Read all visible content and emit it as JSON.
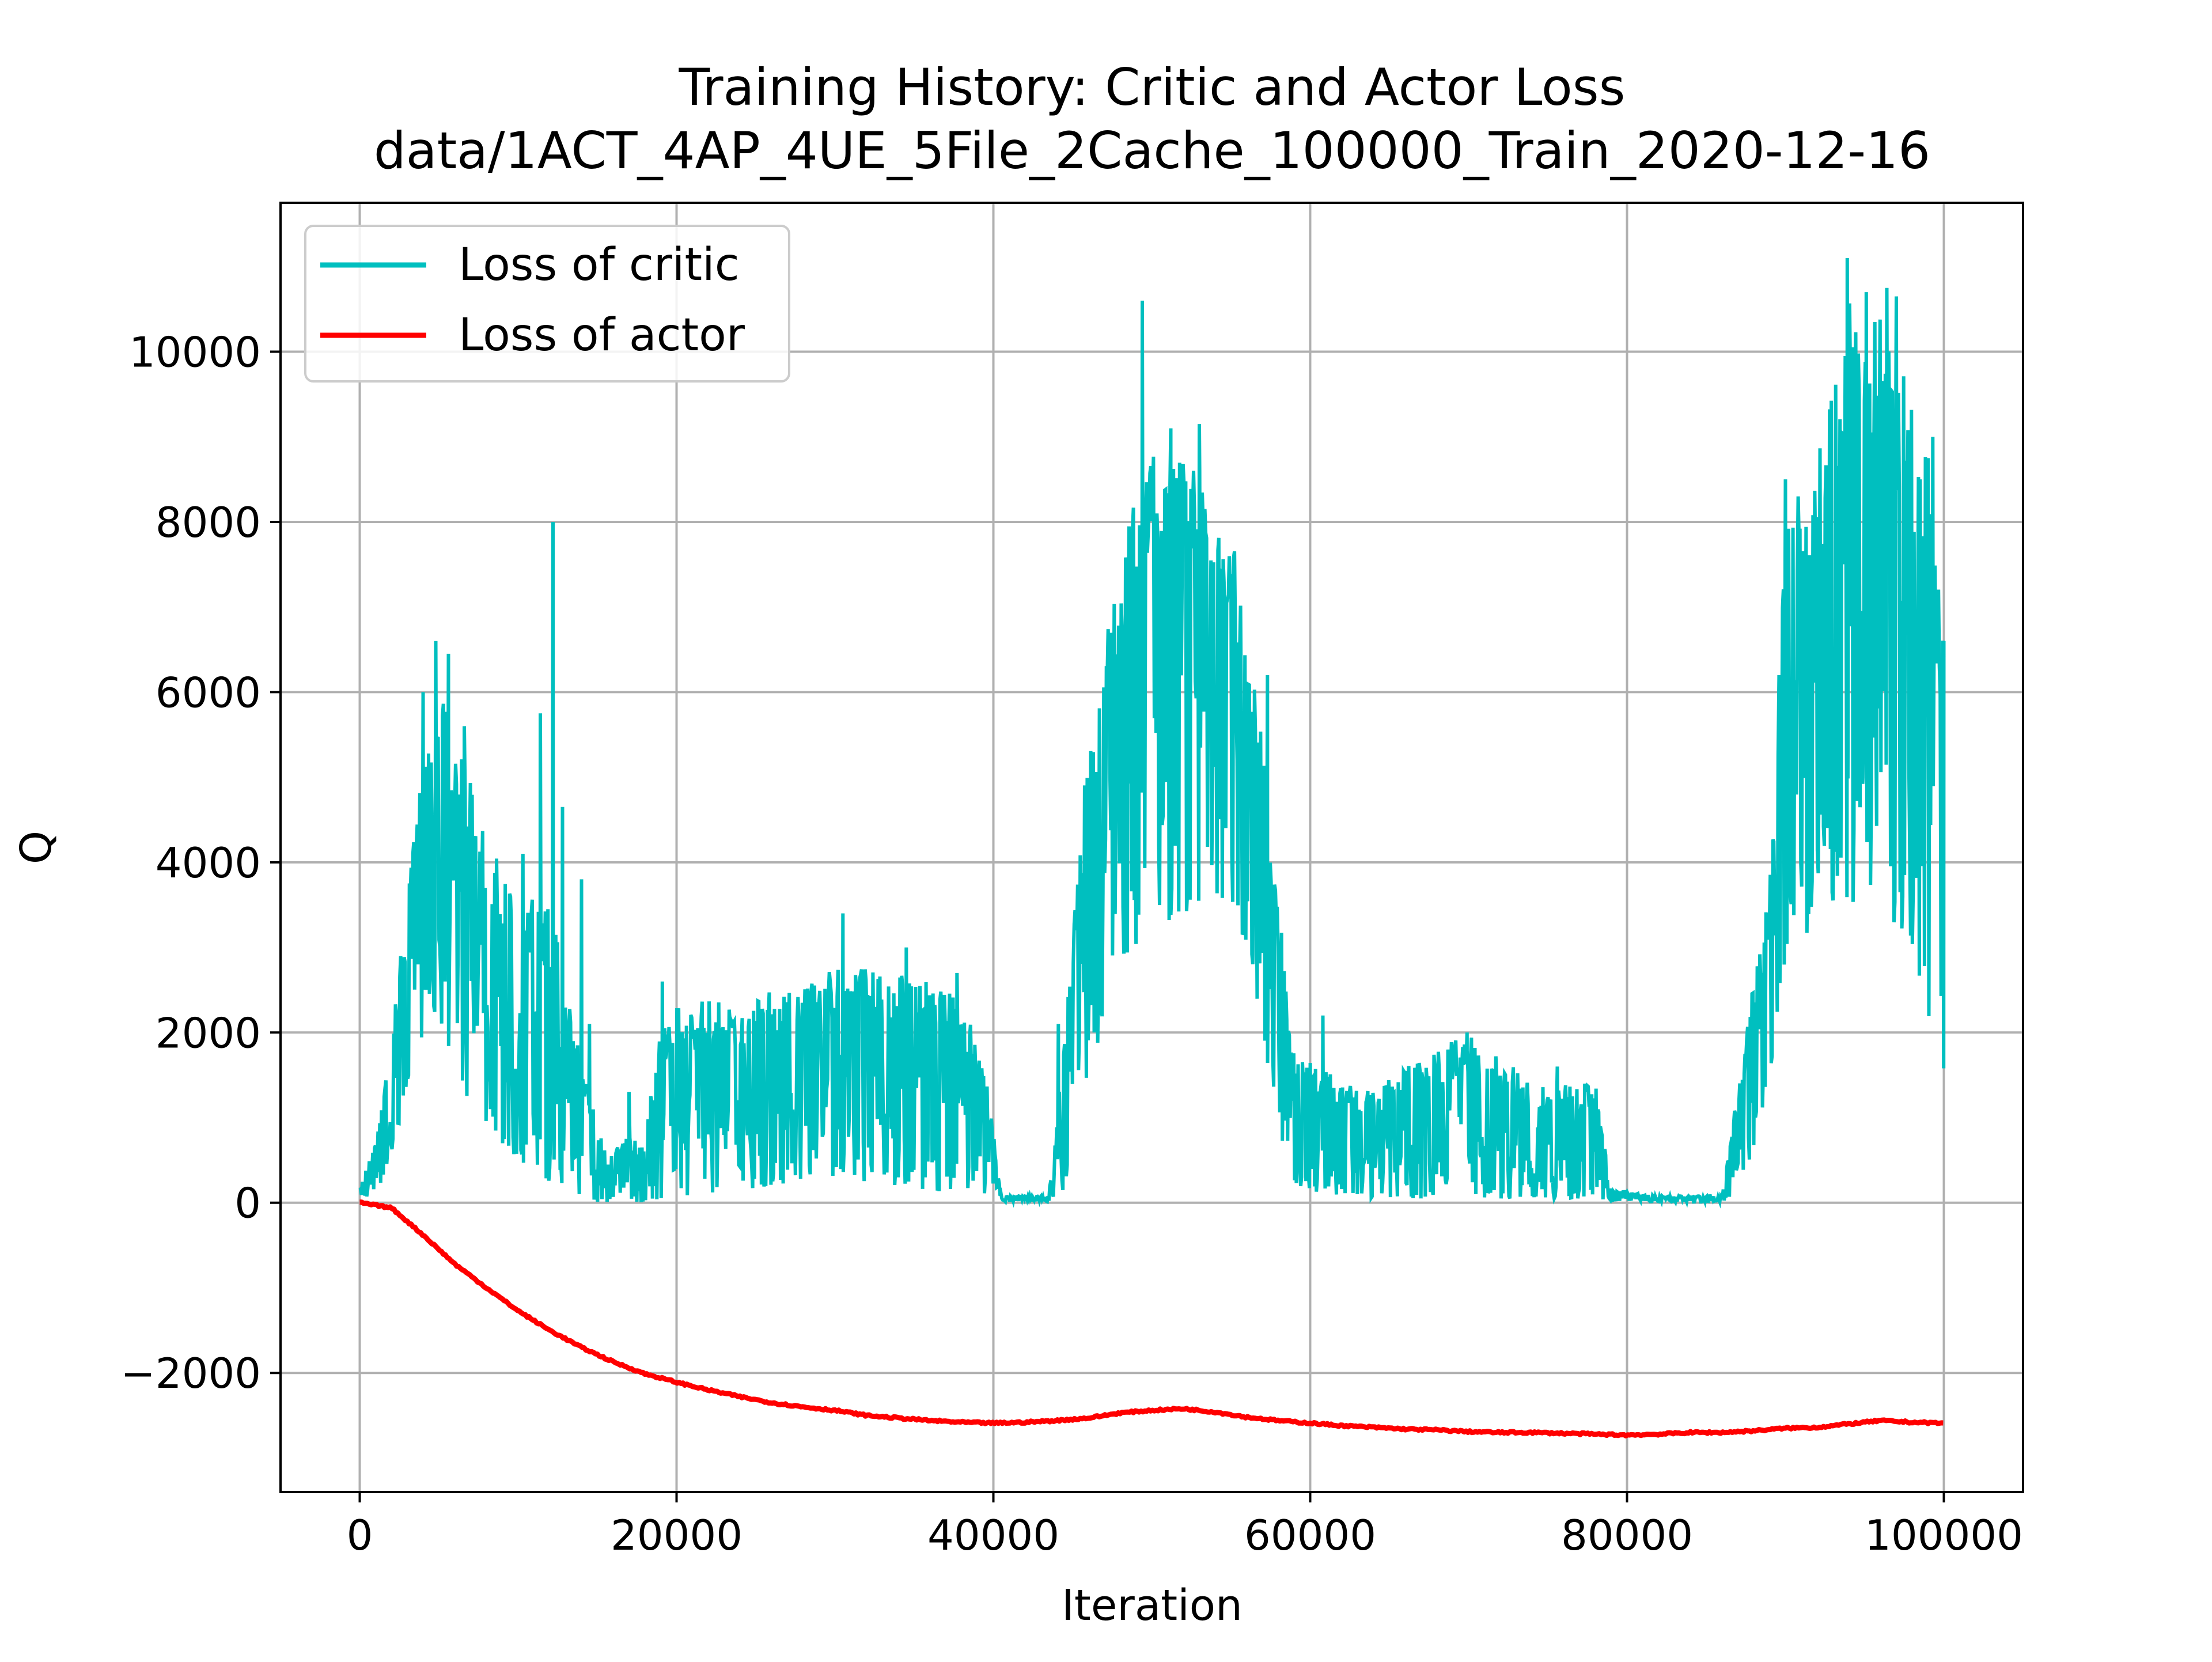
{
  "chart_data": {
    "type": "line",
    "title": "Training History: Critic and Actor Loss",
    "subtitle": "data/1ACT_4AP_4UE_5File_2Cache_100000_Train_2020-12-16",
    "xlabel": "Iteration",
    "ylabel": "Q",
    "xlim": [
      -5000,
      105000
    ],
    "ylim": [
      -3400,
      11750
    ],
    "grid": true,
    "legend_position": "top-left",
    "x_ticks": [
      0,
      20000,
      40000,
      60000,
      80000,
      100000
    ],
    "x_tick_labels": [
      "0",
      "20000",
      "40000",
      "60000",
      "80000",
      "100000"
    ],
    "y_ticks": [
      -2000,
      0,
      2000,
      4000,
      6000,
      8000,
      10000
    ],
    "y_tick_labels": [
      "−2000",
      "0",
      "2000",
      "4000",
      "6000",
      "8000",
      "10000"
    ],
    "series": [
      {
        "name": "Loss of critic",
        "color": "#00BFBF",
        "style": "noisy-band",
        "x": [
          0,
          1000,
          2000,
          3000,
          4000,
          5000,
          6000,
          7000,
          8000,
          9000,
          10000,
          11000,
          12000,
          13000,
          14000,
          15000,
          16000,
          17000,
          18000,
          19000,
          20000,
          22000,
          24000,
          26000,
          28000,
          30000,
          32000,
          34000,
          36000,
          38000,
          39500,
          40500,
          42000,
          43500,
          44500,
          46000,
          48000,
          50000,
          52000,
          54000,
          55000,
          56000,
          57000,
          58000,
          59000,
          60000,
          62000,
          64000,
          66000,
          68000,
          70000,
          72000,
          74000,
          76000,
          78000,
          79000,
          82000,
          86000,
          87500,
          89000,
          90000,
          92000,
          94000,
          96000,
          98000,
          99000,
          100000
        ],
        "upper": [
          150,
          800,
          2000,
          3600,
          5200,
          6400,
          5500,
          5000,
          4300,
          4000,
          3900,
          3700,
          3500,
          2800,
          1800,
          900,
          700,
          800,
          700,
          2200,
          2300,
          2400,
          2400,
          2500,
          2500,
          2800,
          2800,
          2700,
          2600,
          2400,
          1600,
          80,
          80,
          80,
          2000,
          5500,
          7700,
          9000,
          8800,
          8700,
          8000,
          7000,
          5500,
          3500,
          1800,
          1700,
          1400,
          1300,
          1600,
          1800,
          2000,
          1700,
          1500,
          1400,
          1400,
          150,
          80,
          80,
          2000,
          3800,
          8000,
          8800,
          10600,
          10400,
          9500,
          8800,
          6500
        ],
        "lower": [
          50,
          100,
          500,
          1300,
          2000,
          2200,
          1600,
          1100,
          900,
          700,
          500,
          350,
          250,
          100,
          30,
          10,
          5,
          5,
          5,
          50,
          80,
          100,
          150,
          200,
          250,
          300,
          250,
          200,
          150,
          100,
          50,
          10,
          10,
          10,
          100,
          1500,
          2800,
          3200,
          3400,
          3600,
          3500,
          3000,
          2000,
          800,
          200,
          80,
          50,
          50,
          50,
          50,
          50,
          50,
          50,
          50,
          50,
          20,
          10,
          10,
          200,
          1500,
          2900,
          3300,
          3500,
          3500,
          3000,
          2200,
          1300
        ],
        "spikes": [
          {
            "x": 4000,
            "y": 6000
          },
          {
            "x": 4800,
            "y": 6600
          },
          {
            "x": 5600,
            "y": 6450
          },
          {
            "x": 6600,
            "y": 5600
          },
          {
            "x": 10300,
            "y": 4100
          },
          {
            "x": 11400,
            "y": 5750
          },
          {
            "x": 12200,
            "y": 8000
          },
          {
            "x": 12800,
            "y": 4650
          },
          {
            "x": 14000,
            "y": 3800
          },
          {
            "x": 14500,
            "y": 2100
          },
          {
            "x": 17000,
            "y": 1300
          },
          {
            "x": 19100,
            "y": 2600
          },
          {
            "x": 30500,
            "y": 3400
          },
          {
            "x": 34500,
            "y": 3000
          },
          {
            "x": 37700,
            "y": 2700
          },
          {
            "x": 44100,
            "y": 2100
          },
          {
            "x": 49400,
            "y": 10600
          },
          {
            "x": 51200,
            "y": 9100
          },
          {
            "x": 53000,
            "y": 9150
          },
          {
            "x": 57300,
            "y": 6200
          },
          {
            "x": 60800,
            "y": 2200
          },
          {
            "x": 69900,
            "y": 2000
          },
          {
            "x": 75600,
            "y": 1600
          },
          {
            "x": 90000,
            "y": 8500
          },
          {
            "x": 93900,
            "y": 11100
          },
          {
            "x": 95100,
            "y": 10700
          },
          {
            "x": 96400,
            "y": 10750
          },
          {
            "x": 97000,
            "y": 10650
          },
          {
            "x": 98500,
            "y": 8500
          },
          {
            "x": 99300,
            "y": 9000
          },
          {
            "x": 100000,
            "y": 6600
          }
        ]
      },
      {
        "name": "Loss of actor",
        "color": "#FF0000",
        "x": [
          0,
          2000,
          4000,
          6000,
          8000,
          10000,
          12000,
          14000,
          16000,
          18000,
          20000,
          22000,
          24000,
          26000,
          28000,
          30000,
          32000,
          34000,
          36000,
          38000,
          40000,
          42000,
          44000,
          46000,
          48000,
          50000,
          52000,
          54000,
          56000,
          58000,
          60000,
          62000,
          64000,
          66000,
          68000,
          70000,
          72000,
          74000,
          76000,
          78000,
          80000,
          82000,
          84000,
          86000,
          88000,
          90000,
          92000,
          94000,
          96000,
          98000,
          100000
        ],
        "y": [
          0,
          -60,
          -380,
          -720,
          -1000,
          -1270,
          -1500,
          -1700,
          -1870,
          -2010,
          -2110,
          -2200,
          -2280,
          -2350,
          -2400,
          -2440,
          -2500,
          -2530,
          -2560,
          -2580,
          -2590,
          -2580,
          -2560,
          -2530,
          -2470,
          -2440,
          -2420,
          -2460,
          -2520,
          -2560,
          -2590,
          -2620,
          -2640,
          -2660,
          -2670,
          -2690,
          -2700,
          -2700,
          -2710,
          -2720,
          -2730,
          -2720,
          -2700,
          -2700,
          -2680,
          -2650,
          -2640,
          -2600,
          -2560,
          -2580,
          -2590
        ]
      }
    ]
  }
}
